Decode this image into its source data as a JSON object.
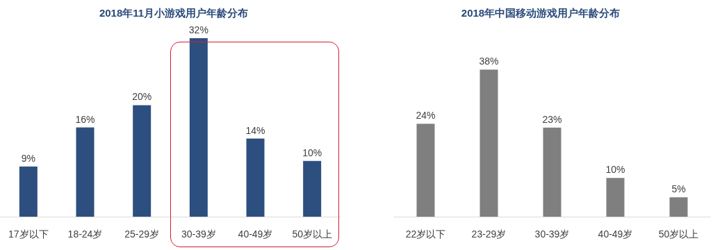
{
  "chart_data": [
    {
      "type": "bar",
      "title": "2018年11月小游戏用户年龄分布",
      "categories": [
        "17岁以下",
        "18-24岁",
        "25-29岁",
        "30-39岁",
        "40-49岁",
        "50岁以上"
      ],
      "values": [
        9,
        16,
        20,
        32,
        14,
        10
      ],
      "value_labels": [
        "9%",
        "16%",
        "20%",
        "32%",
        "14%",
        "10%"
      ],
      "color": "#2d4f80"
    },
    {
      "type": "bar",
      "title": "2018年中国移动游戏用户年龄分布",
      "categories": [
        "22岁以下",
        "23-29岁",
        "30-39岁",
        "40-49岁",
        "50岁以上"
      ],
      "values": [
        24,
        38,
        23,
        10,
        5
      ],
      "value_labels": [
        "24%",
        "38%",
        "23%",
        "10%",
        "5%"
      ],
      "color": "#7f7f7f"
    }
  ]
}
